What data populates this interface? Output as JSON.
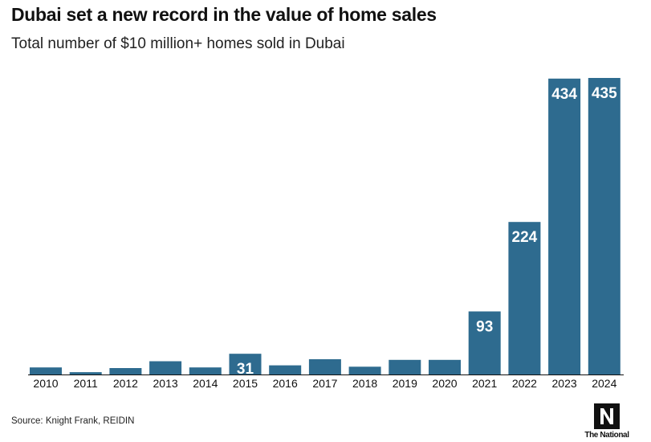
{
  "title": "Dubai set a new record in the value of home sales",
  "subtitle": "Total number of $10 million+ homes sold in Dubai",
  "source": "Source: Knight Frank, REIDIN",
  "logo_text": "The National",
  "colors": {
    "bar": "#2e6b8f",
    "label": "#ffffff",
    "axis": "#111111"
  },
  "chart_data": {
    "type": "bar",
    "title": "Dubai set a new record in the value of home sales",
    "subtitle": "Total number of $10 million+ homes sold in Dubai",
    "xlabel": "",
    "ylabel": "",
    "categories": [
      "2010",
      "2011",
      "2012",
      "2013",
      "2014",
      "2015",
      "2016",
      "2017",
      "2018",
      "2019",
      "2020",
      "2021",
      "2022",
      "2023",
      "2024"
    ],
    "values": [
      11,
      4,
      10,
      20,
      11,
      31,
      14,
      23,
      12,
      22,
      22,
      93,
      224,
      434,
      435
    ],
    "data_labels": [
      "",
      "",
      "",
      "",
      "",
      "31",
      "",
      "",
      "",
      "",
      "",
      "93",
      "224",
      "434",
      "435"
    ],
    "ylim": [
      0,
      435
    ],
    "grid": false,
    "legend": "none"
  }
}
